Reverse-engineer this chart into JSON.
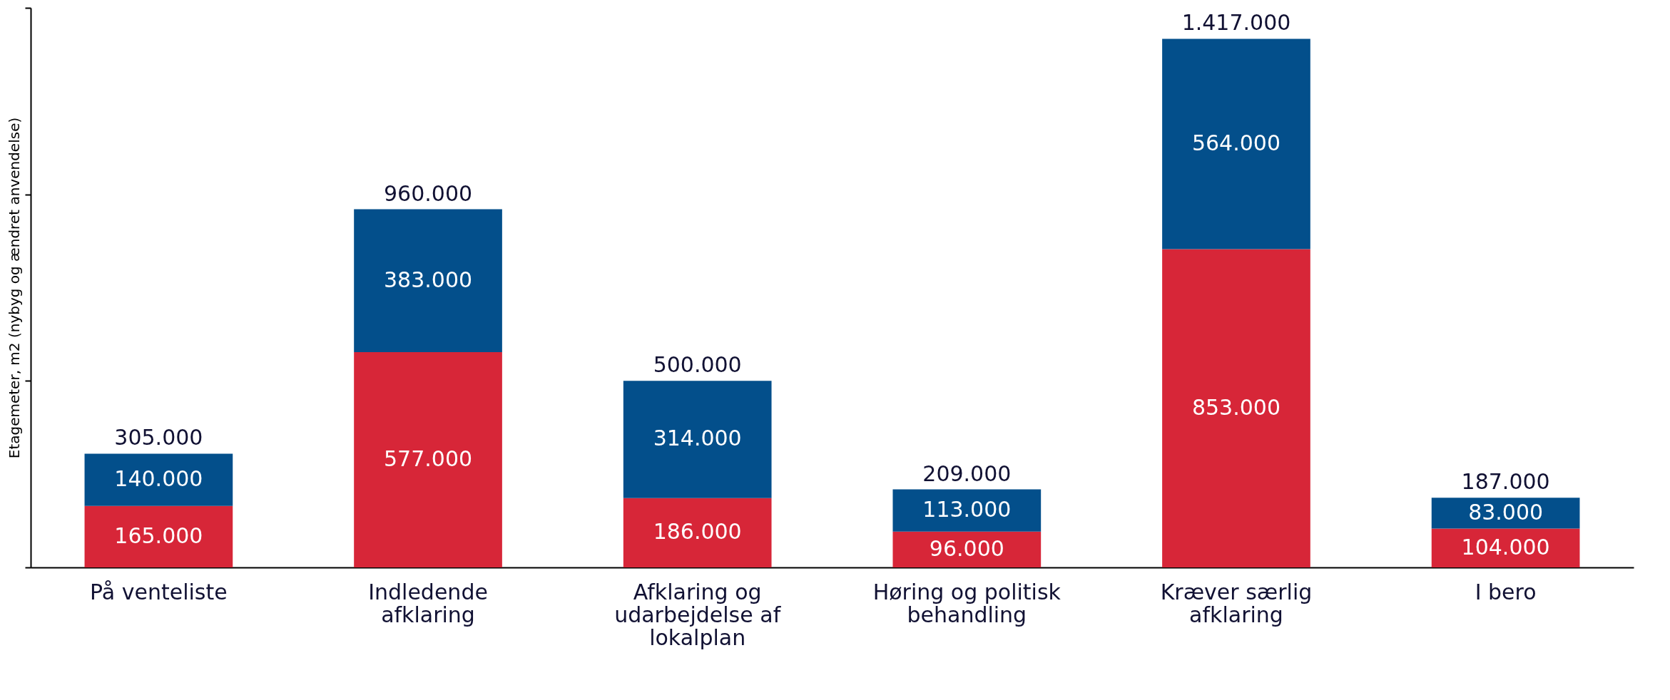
{
  "chart_data": {
    "type": "bar",
    "ylabel": "Etagemeter, m2 (nybyg og ændret anvendelse)",
    "categories": [
      "På venteliste",
      "Indledende afklaring",
      "Afklaring og udarbejdelse af lokalplan",
      "Høring og politisk behandling",
      "Kræver særlig afklaring",
      "I bero"
    ],
    "stacked": true,
    "grid": false,
    "tick_labels": "x",
    "ylim": [
      0,
      1500000
    ],
    "yticks": [
      {
        "value": 0,
        "label": null
      },
      {
        "value": 500000,
        "label": null
      },
      {
        "value": 1000000,
        "label": null
      },
      {
        "value": 1500000,
        "label": null
      }
    ],
    "series": [
      {
        "color": "#d72638",
        "values": [
          165000,
          577000,
          186000,
          96000,
          853000,
          104000
        ],
        "value_labels": [
          "165.000",
          "577.000",
          "186.000",
          "96.000",
          "853.000",
          "104.000"
        ]
      },
      {
        "color": "#034f8b",
        "values": [
          140000,
          383000,
          314000,
          113000,
          564000,
          83000
        ],
        "value_labels": [
          "140.000",
          "383.000",
          "314.000",
          "113.000",
          "564.000",
          "83.000"
        ]
      }
    ],
    "totals": [
      "305.000",
      "960.000",
      "500.000",
      "209.000",
      "1.417.000",
      "187.000"
    ]
  }
}
